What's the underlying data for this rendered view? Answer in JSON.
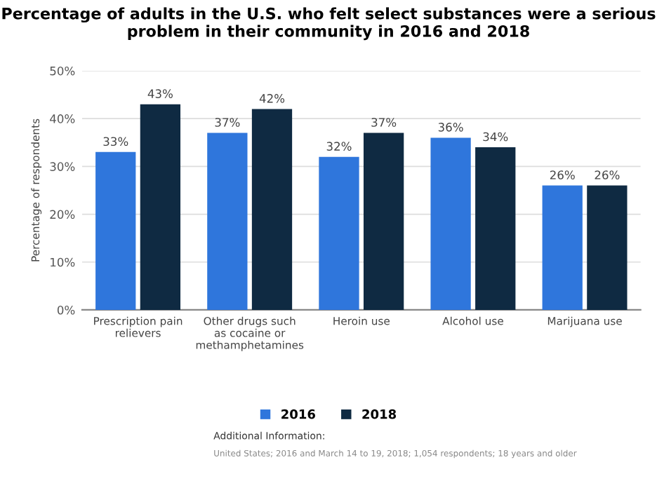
{
  "chart_data": {
    "type": "bar",
    "title": "Percentage of adults in the U.S. who felt select substances were a serious problem in their community in 2016 and 2018",
    "categories": [
      "Prescription pain relievers",
      "Other drugs such as cocaine or methamphetamines",
      "Heroin use",
      "Alcohol use",
      "Marijuana use"
    ],
    "series": [
      {
        "name": "2016",
        "color": "#2f76dc",
        "values": [
          33,
          37,
          32,
          36,
          26
        ],
        "value_labels": [
          "33%",
          "37%",
          "32%",
          "36%",
          "26%"
        ]
      },
      {
        "name": "2018",
        "color": "#0f2a42",
        "values": [
          43,
          42,
          37,
          34,
          26
        ],
        "value_labels": [
          "43%",
          "42%",
          "37%",
          "34%",
          "26%"
        ]
      }
    ],
    "ylabel": "Percentage of respondents",
    "ylim": [
      0,
      50
    ],
    "yticks": [
      {
        "value": 0,
        "label": "0%"
      },
      {
        "value": 10,
        "label": "10%"
      },
      {
        "value": 20,
        "label": "20%"
      },
      {
        "value": 30,
        "label": "30%"
      },
      {
        "value": 40,
        "label": "40%"
      },
      {
        "value": 50,
        "label": "50%"
      }
    ],
    "grid": "y",
    "legend": "bottom",
    "annotations": [
      "Additional Information:",
      "United States; 2016 and March 14 to 19, 2018; 1,054 respondents; 18 years and older"
    ]
  }
}
